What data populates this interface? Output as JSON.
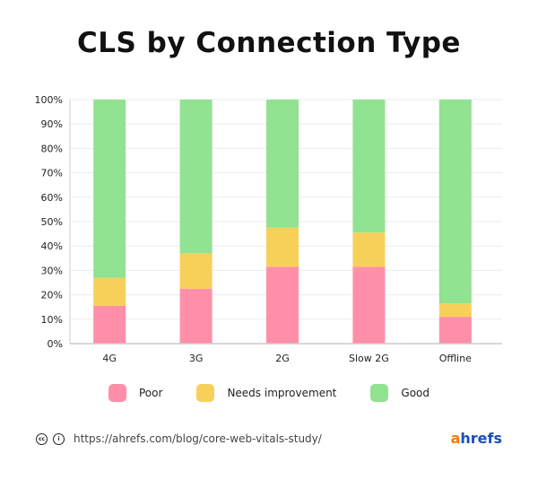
{
  "chart_data": {
    "type": "bar",
    "stacked": true,
    "title": "CLS by Connection Type",
    "categories": [
      "4G",
      "3G",
      "2G",
      "Slow 2G",
      "Offline"
    ],
    "series": [
      {
        "name": "Poor",
        "color": "#ff8fa8",
        "values": [
          15.5,
          22.5,
          31.5,
          31.5,
          11
        ]
      },
      {
        "name": "Needs improvement",
        "color": "#f7d05a",
        "values": [
          11.5,
          14.5,
          16,
          14,
          5.5
        ]
      },
      {
        "name": "Good",
        "color": "#91e291",
        "values": [
          73,
          63,
          52.5,
          54.5,
          83.5
        ]
      }
    ],
    "yticks": [
      "0%",
      "10%",
      "20%",
      "30%",
      "40%",
      "50%",
      "60%",
      "70%",
      "80%",
      "90%",
      "100%"
    ],
    "ylim": [
      0,
      100
    ],
    "grid": true,
    "legend_placement": "bottom"
  },
  "footer": {
    "url": "https://ahrefs.com/blog/core-web-vitals-study/",
    "logo_a": "a",
    "logo_rest": "hrefs",
    "icons": [
      "creative-commons-icon",
      "attribution-icon"
    ]
  }
}
